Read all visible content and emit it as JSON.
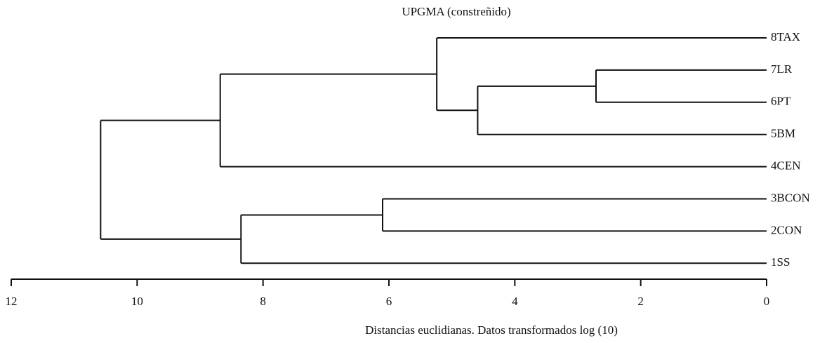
{
  "chart_data": {
    "type": "dendrogram",
    "title": "UPGMA (constreñido)",
    "x_label": "Distancias euclidianas. Datos transformados log (10)",
    "xlim": [
      12,
      0
    ],
    "xticks": [
      12,
      10,
      8,
      6,
      4,
      2,
      0
    ],
    "tree": {
      "height": 10.58,
      "children": [
        {
          "height": 8.68,
          "children": [
            {
              "height": 5.24,
              "children": [
                {
                  "label": "8TAX"
                },
                {
                  "height": 4.59,
                  "children": [
                    {
                      "height": 2.71,
                      "children": [
                        {
                          "label": "7LR"
                        },
                        {
                          "label": "6PT"
                        }
                      ]
                    },
                    {
                      "label": "5BM"
                    }
                  ]
                }
              ]
            },
            {
              "label": "4CEN"
            }
          ]
        },
        {
          "height": 8.35,
          "children": [
            {
              "height": 6.1,
              "children": [
                {
                  "label": "3BCON"
                },
                {
                  "label": "2CON"
                }
              ]
            },
            {
              "label": "1SS"
            }
          ]
        }
      ]
    }
  }
}
